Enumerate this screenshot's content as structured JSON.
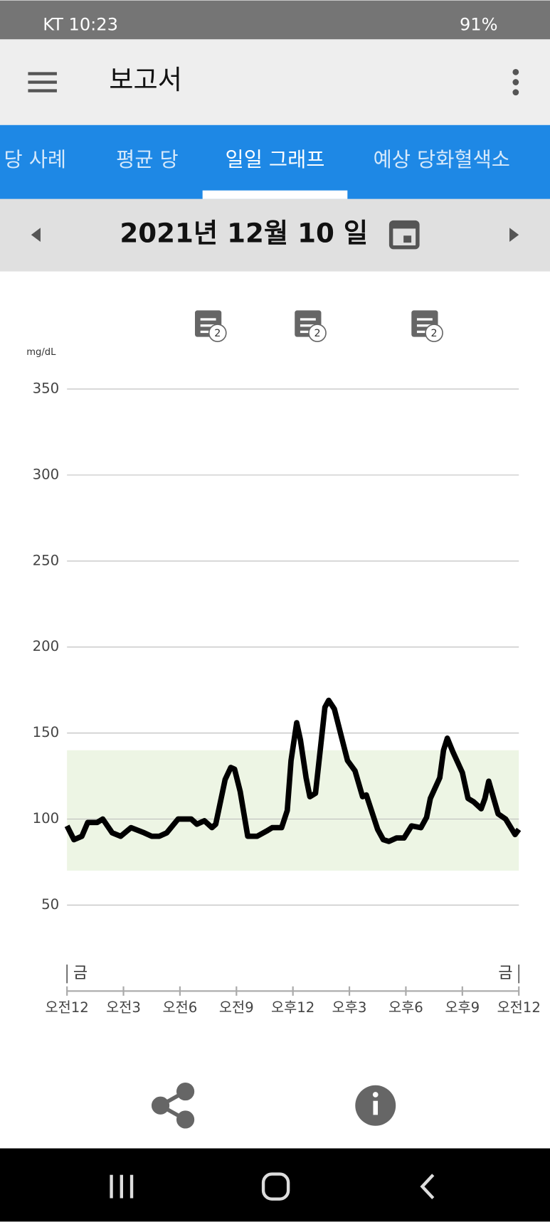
{
  "status_bar": {
    "carrier_time": "KT 10:23",
    "battery": "91%"
  },
  "app_bar": {
    "title": "보고서"
  },
  "tabs": [
    "당 사례",
    "평균 당",
    "일일 그래프",
    "예상 당화혈색소"
  ],
  "selected_tab": 2,
  "date_nav": {
    "date": "2021년 12월 10 일"
  },
  "chart_data": {
    "type": "line",
    "y_label": "mg/dL",
    "x": [
      0,
      0.37,
      0.79,
      1.1,
      1.6,
      1.9,
      2.4,
      2.85,
      3.4,
      4.1,
      4.5,
      4.9,
      5.3,
      5.9,
      6.6,
      6.9,
      7.3,
      7.7,
      7.9,
      8.4,
      8.7,
      8.9,
      9.2,
      9.6,
      10.1,
      10.6,
      10.9,
      11.4,
      11.7,
      11.9,
      12.2,
      12.4,
      12.7,
      12.9,
      13.2,
      13.7,
      13.9,
      14.2,
      14.9,
      15.3,
      15.7,
      15.9,
      16.5,
      16.8,
      17.1,
      17.5,
      17.9,
      18.3,
      18.8,
      19.1,
      19.3,
      19.8,
      20.0,
      20.2,
      20.5,
      21.0,
      21.3,
      21.6,
      22.0,
      22.2,
      22.4,
      22.9,
      23.3,
      23.8,
      24
    ],
    "series": [
      {
        "color": "#000000",
        "values": [
          96,
          88,
          90,
          98,
          98,
          100,
          92,
          90,
          95,
          92,
          90,
          90,
          92,
          100,
          100,
          97,
          99,
          95,
          97,
          123,
          130,
          129,
          116,
          90,
          90,
          93,
          95,
          95,
          105,
          134,
          156,
          146,
          124,
          113,
          115,
          165,
          169,
          164,
          134,
          128,
          113,
          114,
          94,
          88,
          87,
          89,
          89,
          96,
          95,
          101,
          112,
          124,
          140,
          147,
          139,
          127,
          112,
          110,
          106,
          112,
          122,
          103,
          100,
          91,
          94
        ]
      }
    ],
    "xlim": [
      0,
      24
    ],
    "ylim": [
      0,
      350
    ],
    "xticks": [
      {
        "value": 0,
        "label": "오전12"
      },
      {
        "value": 3,
        "label": "오전3"
      },
      {
        "value": 6,
        "label": "오전6"
      },
      {
        "value": 9,
        "label": "오전9"
      },
      {
        "value": 12,
        "label": "오후12"
      },
      {
        "value": 15,
        "label": "오후3"
      },
      {
        "value": 18,
        "label": "오후6"
      },
      {
        "value": 21,
        "label": "오후9"
      },
      {
        "value": 24,
        "label": "오전12"
      }
    ],
    "yticks": [
      50,
      100,
      150,
      200,
      250,
      300,
      350
    ],
    "grid": true,
    "target_range": [
      70,
      140
    ],
    "target_color": "#edf5e4",
    "day_labels": [
      {
        "value": 0,
        "label": "금"
      },
      {
        "value": 24,
        "label": "금"
      }
    ],
    "notes": [
      {
        "x": 7.5,
        "count": 2
      },
      {
        "x": 12.8,
        "count": 2
      },
      {
        "x": 19.0,
        "count": 2
      }
    ]
  }
}
